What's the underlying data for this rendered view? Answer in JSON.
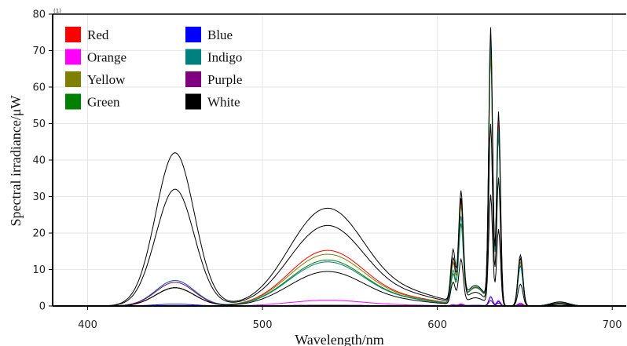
{
  "chart_data": {
    "type": "line",
    "title": "",
    "xlabel": "Wavelength/nm",
    "ylabel": "Spectral irradiance/μW",
    "corner_label": "(1)",
    "xlim": [
      380,
      708
    ],
    "ylim": [
      0,
      80
    ],
    "x_ticks": [
      400,
      500,
      600,
      700
    ],
    "y_ticks": [
      0,
      10,
      20,
      30,
      40,
      50,
      60,
      70,
      80
    ],
    "grid": true,
    "legend_position": "top-left",
    "legend": [
      {
        "name": "Red",
        "color": "#ff0000"
      },
      {
        "name": "Orange",
        "color": "#ff00ff"
      },
      {
        "name": "Yellow",
        "color": "#808000"
      },
      {
        "name": "Green",
        "color": "#008000"
      },
      {
        "name": "Blue",
        "color": "#0000ff"
      },
      {
        "name": "Indigo",
        "color": "#008080"
      },
      {
        "name": "Purple",
        "color": "#800080"
      },
      {
        "name": "White",
        "color": "#000000"
      }
    ],
    "series": [
      {
        "color": "#ff0000",
        "blue_peak": 5,
        "green_peak": 14.5,
        "r610": 11,
        "r613": 27,
        "r631": 70,
        "r635": 50,
        "r648": 12
      },
      {
        "color": "#ff00ff",
        "blue_peak": 7,
        "green_peak": 1.5,
        "r610": 0.3,
        "r613": 0.5,
        "r631": 2.5,
        "r635": 1.5,
        "r648": 0.8
      },
      {
        "color": "#808000",
        "blue_peak": 5,
        "green_peak": 13.5,
        "r610": 11,
        "r613": 26,
        "r631": 68,
        "r635": 48,
        "r648": 12
      },
      {
        "color": "#008000",
        "blue_peak": 5,
        "green_peak": 12,
        "r610": 8,
        "r613": 21,
        "r631": 72,
        "r635": 47,
        "r648": 11
      },
      {
        "color": "#0000ff",
        "blue_peak": 0.5,
        "green_peak": 0.2,
        "r610": 0.2,
        "r613": 0.3,
        "r631": 2.5,
        "r635": 1.2,
        "r648": 0.5
      },
      {
        "color": "#008080",
        "blue_peak": 7,
        "green_peak": 11.5,
        "r610": 9,
        "r613": 23,
        "r631": 72,
        "r635": 48,
        "r648": 11
      },
      {
        "color": "#800080",
        "blue_peak": 6.5,
        "green_peak": 0.2,
        "r610": 0.2,
        "r613": 0.3,
        "r631": 1.5,
        "r635": 0.8,
        "r648": 0.4
      },
      {
        "color": "#000000",
        "blue_peak": 42,
        "green_peak": 25.5,
        "r610": 14,
        "r613": 29.5,
        "r631": 75,
        "r635": 53,
        "r648": 14
      },
      {
        "color": "#000000",
        "blue_peak": 32,
        "green_peak": 21,
        "r610": 12,
        "r613": 28,
        "r631": 49,
        "r635": 35,
        "r648": 13
      },
      {
        "color": "#000000",
        "blue_peak": 5,
        "green_peak": 9,
        "r610": 6,
        "r613": 12,
        "r631": 30,
        "r635": 21,
        "r648": 6
      }
    ]
  }
}
